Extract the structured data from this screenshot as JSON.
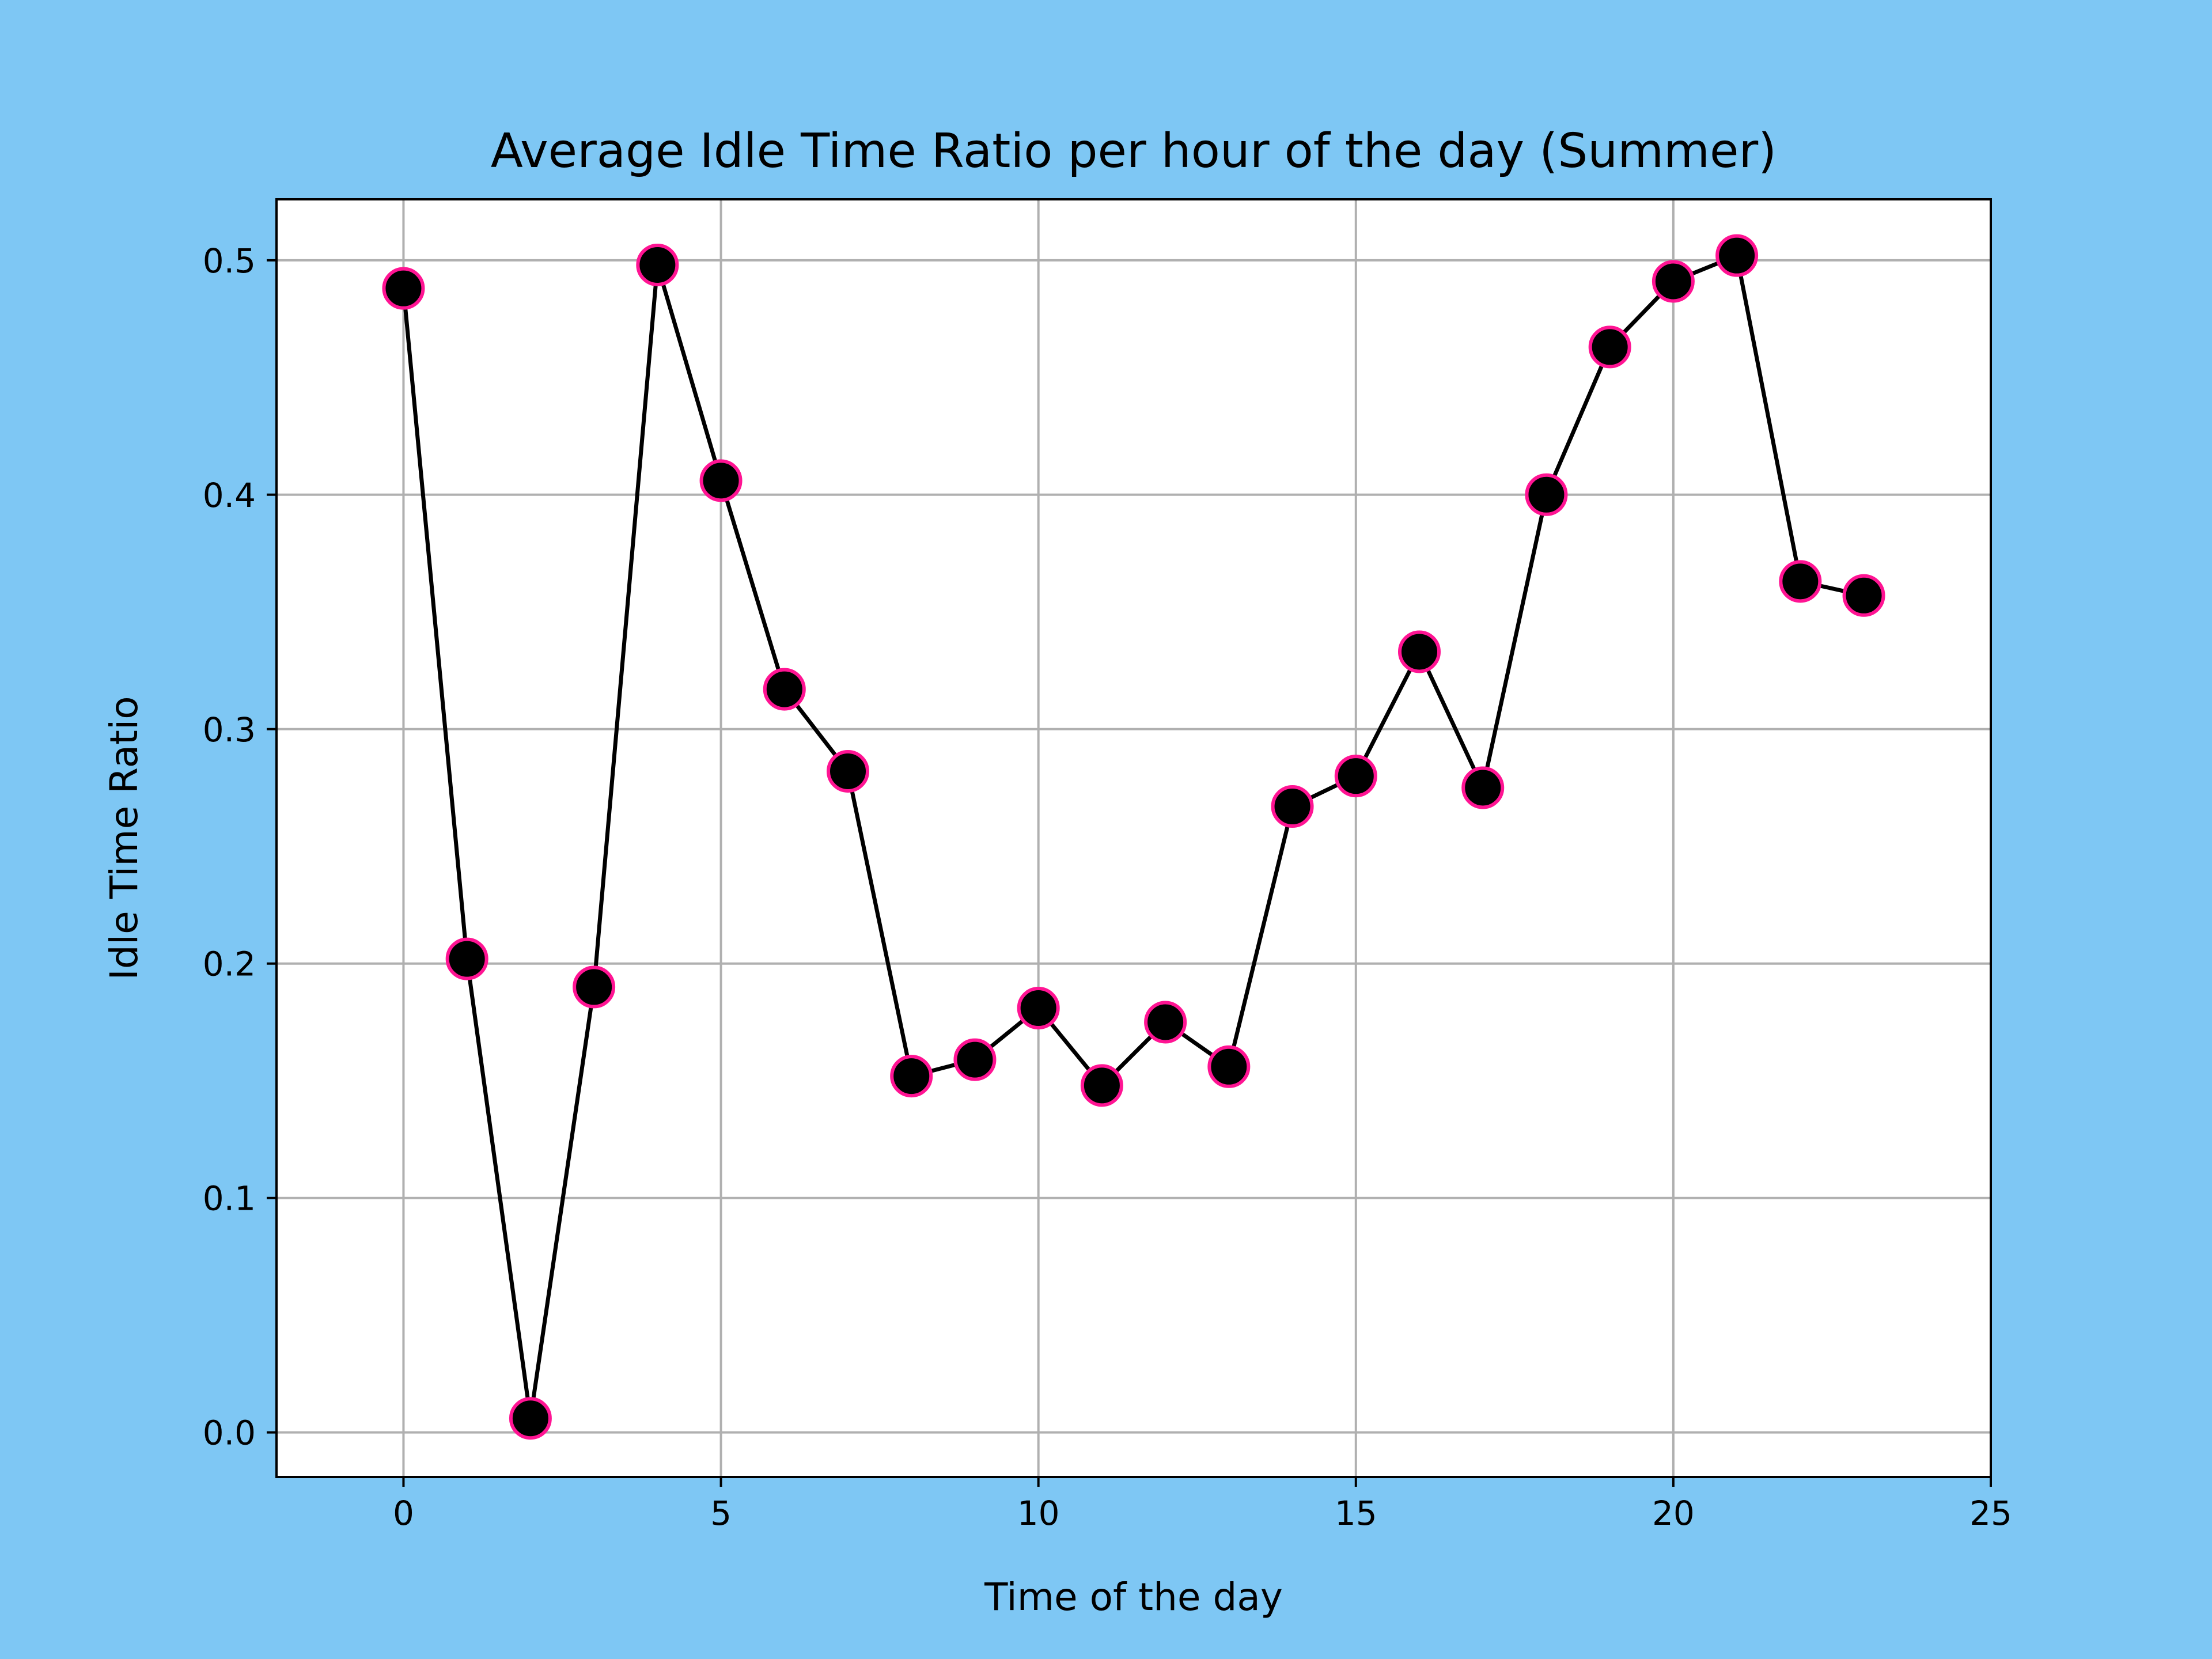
{
  "chart_data": {
    "type": "line",
    "title": "Average Idle Time Ratio per hour of the day (Summer)",
    "xlabel": "Time of the day",
    "ylabel": "Idle Time Ratio",
    "xlim": [
      -2,
      25
    ],
    "ylim": [
      -0.019,
      0.526
    ],
    "xticks": [
      0,
      5,
      10,
      15,
      20,
      25
    ],
    "xtick_labels": [
      "0",
      "5",
      "10",
      "15",
      "20",
      "25"
    ],
    "yticks": [
      0.0,
      0.1,
      0.2,
      0.3,
      0.4,
      0.5
    ],
    "ytick_labels": [
      "0.0",
      "0.1",
      "0.2",
      "0.3",
      "0.4",
      "0.5"
    ],
    "grid": true,
    "legend": "none",
    "x": [
      0,
      1,
      2,
      3,
      4,
      5,
      6,
      7,
      8,
      9,
      10,
      11,
      12,
      13,
      14,
      15,
      16,
      17,
      18,
      19,
      20,
      21,
      22,
      23
    ],
    "series": [
      {
        "values": [
          0.488,
          0.202,
          0.006,
          0.19,
          0.498,
          0.406,
          0.317,
          0.282,
          0.152,
          0.159,
          0.181,
          0.148,
          0.175,
          0.156,
          0.267,
          0.28,
          0.333,
          0.275,
          0.4,
          0.463,
          0.491,
          0.502,
          0.363,
          0.357
        ],
        "color": "#000000",
        "marker_edge_color": "#ff1493"
      }
    ]
  },
  "colors": {
    "figure_background": "#7ec7f4",
    "plot_background": "#ffffff",
    "grid": "#b0b0b0",
    "line": "#000000",
    "marker_fill": "#000000",
    "marker_edge": "#ff1493"
  }
}
